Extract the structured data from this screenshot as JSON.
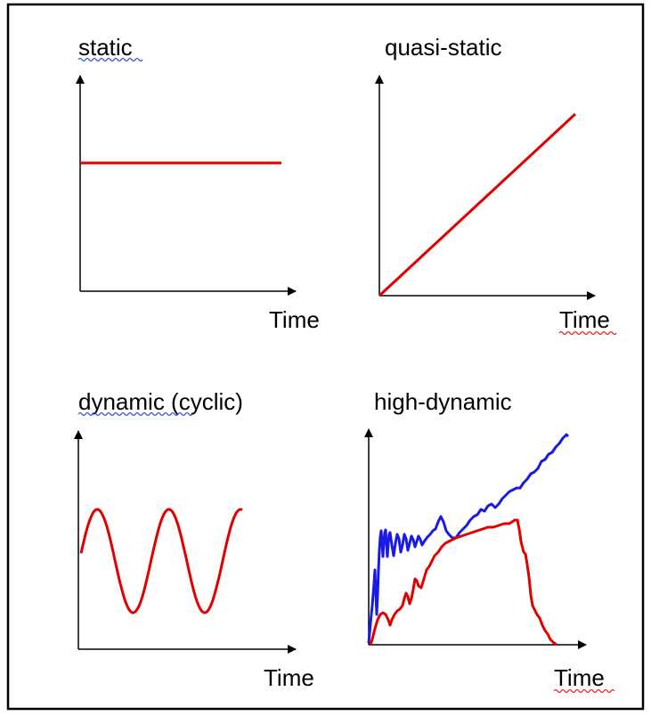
{
  "panels": [
    {
      "title": "static",
      "xlabel": "Time",
      "pattern": "constant"
    },
    {
      "title": "quasi-static",
      "xlabel": "Time",
      "pattern": "linear-ramp"
    },
    {
      "title": "dynamic (cyclic)",
      "xlabel": "Time",
      "pattern": "sinusoidal"
    },
    {
      "title": "high-dynamic",
      "xlabel": "Time",
      "pattern": "noisy-transient"
    }
  ],
  "colors": {
    "curve_primary": "#e00000",
    "curve_secondary": "#1a1ae6",
    "axis": "#000000",
    "frame": "#000000",
    "spellcheck_blue": "#3050d0",
    "spellcheck_red": "#e02020"
  }
}
